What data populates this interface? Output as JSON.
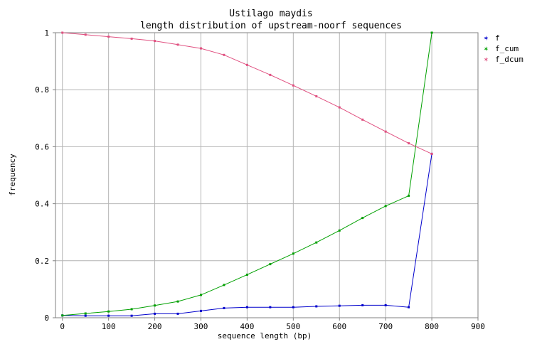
{
  "chart_data": {
    "type": "line",
    "title": "Ustilago maydis",
    "subtitle": "length distribution of upstream-noorf sequences",
    "xlabel": "sequence length (bp)",
    "ylabel": "frequency",
    "xlim": [
      -15,
      900
    ],
    "ylim": [
      0,
      1
    ],
    "xticks": [
      "0",
      "100",
      "200",
      "300",
      "400",
      "500",
      "600",
      "700",
      "800",
      "900"
    ],
    "yticks": [
      "0",
      "0.2",
      "0.4",
      "0.6",
      "0.8",
      "1"
    ],
    "grid": true,
    "legend_position": "top-right",
    "x": [
      0,
      50,
      100,
      150,
      200,
      250,
      300,
      350,
      400,
      450,
      500,
      550,
      600,
      650,
      700,
      750,
      800
    ],
    "series": [
      {
        "name": "f",
        "color": "#0000cc",
        "values": [
          0.008,
          0.007,
          0.007,
          0.007,
          0.014,
          0.014,
          0.024,
          0.034,
          0.037,
          0.037,
          0.037,
          0.04,
          0.042,
          0.044,
          0.044,
          0.037,
          0.575
        ]
      },
      {
        "name": "f_cum",
        "color": "#00a000",
        "values": [
          0.008,
          0.015,
          0.022,
          0.03,
          0.043,
          0.057,
          0.08,
          0.115,
          0.151,
          0.188,
          0.225,
          0.264,
          0.306,
          0.35,
          0.392,
          0.428,
          1.0
        ]
      },
      {
        "name": "f_dcum",
        "color": "#e05080",
        "values": [
          1.0,
          0.993,
          0.986,
          0.979,
          0.971,
          0.958,
          0.945,
          0.922,
          0.887,
          0.852,
          0.815,
          0.777,
          0.738,
          0.695,
          0.653,
          0.612,
          0.575
        ]
      }
    ]
  }
}
